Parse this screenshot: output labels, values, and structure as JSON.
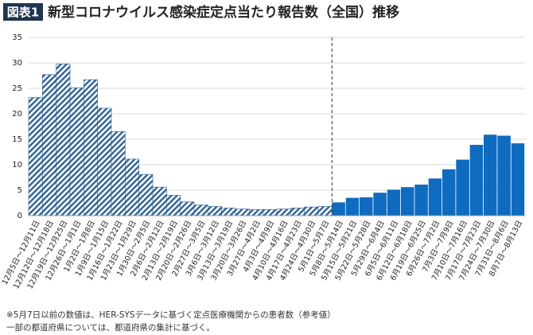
{
  "chart_data": {
    "type": "bar",
    "title_tag": "図表1",
    "title": "新型コロナウイルス感染症定点当たり報告数（全国）推移",
    "categories": [
      "12月5日～12月11日",
      "12月12日～12月18日",
      "12月19日～12月25日",
      "12月26日～1月1日",
      "1月2日～1月8日",
      "1月9日～1月15日",
      "1月16日～1月22日",
      "1月23日～1月29日",
      "1月30日～2月5日",
      "2月6日～2月12日",
      "2月13日～2月19日",
      "2月20日～2月26日",
      "2月27日～3月5日",
      "3月6日～3月12日",
      "3月13日～3月19日",
      "3月20日～3月26日",
      "3月27日～4月2日",
      "4月3日～4月9日",
      "4月10日～4月16日",
      "4月17日～4月23日",
      "4月24日～4月30日",
      "5月1日～5月7日",
      "5月8日～5月14日",
      "5月15日～5月21日",
      "5月22日～5月28日",
      "5月29日～6月4日",
      "6月5日～6月11日",
      "6月12日～6月18日",
      "6月19日～6月25日",
      "6月26日～7月2日",
      "7月3日～7月9日",
      "7月10日～7月16日",
      "7月17日～7月23日",
      "7月24日～7月30日",
      "7月31日～8月6日",
      "8月7日～8月13日"
    ],
    "series": [
      {
        "color": "#2f6394",
        "fill": "hatch",
        "values": [
          23.2,
          27.7,
          29.8,
          25.1,
          26.7,
          21.1,
          16.5,
          11.1,
          8.1,
          5.6,
          4.0,
          2.7,
          2.1,
          1.8,
          1.5,
          1.3,
          1.2,
          1.2,
          1.3,
          1.5,
          1.7,
          1.8,
          null,
          null,
          null,
          null,
          null,
          null,
          null,
          null,
          null,
          null,
          null,
          null,
          null,
          null
        ]
      },
      {
        "color": "#0f6bbf",
        "fill": "solid",
        "values": [
          null,
          null,
          null,
          null,
          null,
          null,
          null,
          null,
          null,
          null,
          null,
          null,
          null,
          null,
          null,
          null,
          null,
          null,
          null,
          null,
          null,
          null,
          2.6,
          3.5,
          3.6,
          4.5,
          5.1,
          5.6,
          6.1,
          7.3,
          9.1,
          11.0,
          13.9,
          15.9,
          15.7,
          14.2
        ]
      }
    ],
    "ylim": [
      0,
      35
    ],
    "yticks": [
      0,
      5,
      10,
      15,
      20,
      25,
      30,
      35
    ],
    "grid": true,
    "notes": [
      "※5月7日以前の数値は、HER-SYSデータに基づく定点医療機関からの患者数（参考値）",
      "一部の都道府県については、都道府県の集計に基づく。"
    ]
  }
}
